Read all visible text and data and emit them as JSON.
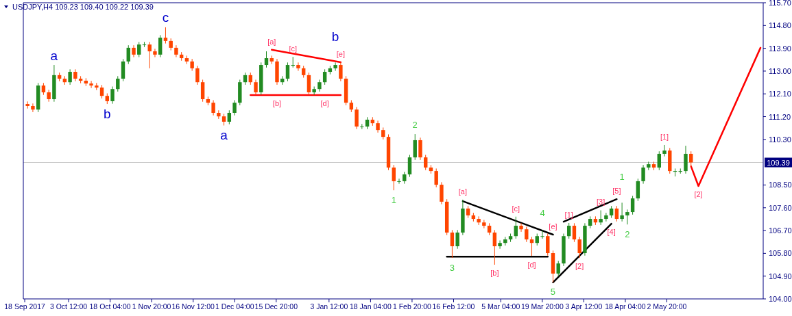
{
  "chart_data": {
    "type": "candlestick",
    "title": "USDJPY,H4  109.23 109.40 109.22 109.39",
    "grid": false,
    "xlim": [
      "2017-09-17T12:00",
      "2018-06-05T21:00"
    ],
    "ylim": [
      104.0,
      115.7
    ],
    "xticks": [
      {
        "value": "2017-09-18T00:00",
        "label": "18 Sep 2017"
      },
      {
        "value": "2017-10-03T12:00",
        "label": "3 Oct 12:00"
      },
      {
        "value": "2017-10-18T04:00",
        "label": "18 Oct 04:00"
      },
      {
        "value": "2017-11-01T20:00",
        "label": "1 Nov 20:00"
      },
      {
        "value": "2017-11-16T12:00",
        "label": "16 Nov 12:00"
      },
      {
        "value": "2017-12-01T04:00",
        "label": "1 Dec 04:00"
      },
      {
        "value": "2017-12-15T20:00",
        "label": "15 Dec 20:00"
      },
      {
        "value": "2018-01-03T12:00",
        "label": "3 Jan 12:00"
      },
      {
        "value": "2018-01-18T04:00",
        "label": "18 Jan 04:00"
      },
      {
        "value": "2018-02-01T20:00",
        "label": "1 Feb 20:00"
      },
      {
        "value": "2018-02-16T12:00",
        "label": "16 Feb 12:00"
      },
      {
        "value": "2018-03-05T04:00",
        "label": "5 Mar 04:00"
      },
      {
        "value": "2018-03-19T20:00",
        "label": "19 Mar 20:00"
      },
      {
        "value": "2018-04-03T12:00",
        "label": "3 Apr 12:00"
      },
      {
        "value": "2018-04-18T04:00",
        "label": "18 Apr 04:00"
      },
      {
        "value": "2018-05-02T20:00",
        "label": "2 May 20:00"
      }
    ],
    "yticks": [
      {
        "value": 104.0,
        "label": "104.00"
      },
      {
        "value": 104.9,
        "label": "104.90"
      },
      {
        "value": 105.8,
        "label": "105.80"
      },
      {
        "value": 106.7,
        "label": "106.70"
      },
      {
        "value": 107.6,
        "label": "107.60"
      },
      {
        "value": 108.5,
        "label": "108.50"
      },
      {
        "value": 110.3,
        "label": "110.30"
      },
      {
        "value": 111.2,
        "label": "111.20"
      },
      {
        "value": 112.1,
        "label": "112.10"
      },
      {
        "value": 113.0,
        "label": "113.00"
      },
      {
        "value": 113.9,
        "label": "113.90"
      },
      {
        "value": 114.8,
        "label": "114.80"
      },
      {
        "value": 115.7,
        "label": "115.70"
      }
    ],
    "ref_lines": [
      {
        "axis": "y",
        "value": 109.39,
        "label": "109.39",
        "color": "#c8c8c8"
      }
    ],
    "x": [
      "2017-09-19T00:00",
      "2017-09-20T21:00",
      "2017-09-22T18:00",
      "2017-09-24T15:00",
      "2017-09-26T12:00",
      "2017-09-28T09:00",
      "2017-09-30T06:00",
      "2017-10-02T03:00",
      "2017-10-04T00:00",
      "2017-10-05T21:00",
      "2017-10-07T18:00",
      "2017-10-09T15:00",
      "2017-10-11T12:00",
      "2017-10-13T09:00",
      "2017-10-15T06:00",
      "2017-10-17T03:00",
      "2017-10-19T00:00",
      "2017-10-20T21:00",
      "2017-10-22T18:00",
      "2017-10-24T15:00",
      "2017-10-26T12:00",
      "2017-10-28T09:00",
      "2017-10-30T06:00",
      "2017-11-01T03:00",
      "2017-11-03T00:00",
      "2017-11-04T21:00",
      "2017-11-06T18:00",
      "2017-11-08T15:00",
      "2017-11-10T12:00",
      "2017-11-12T09:00",
      "2017-11-14T06:00",
      "2017-11-16T03:00",
      "2017-11-18T00:00",
      "2017-11-19T21:00",
      "2017-11-21T18:00",
      "2017-11-23T15:00",
      "2017-11-25T12:00",
      "2017-11-27T09:00",
      "2017-11-29T06:00",
      "2017-12-01T03:00",
      "2017-12-03T00:00",
      "2017-12-04T21:00",
      "2017-12-06T18:00",
      "2017-12-08T15:00",
      "2017-12-10T12:00",
      "2017-12-12T09:00",
      "2017-12-14T06:00",
      "2017-12-16T03:00",
      "2017-12-18T00:00",
      "2017-12-19T21:00",
      "2017-12-21T18:00",
      "2017-12-23T15:00",
      "2017-12-25T12:00",
      "2017-12-27T09:00",
      "2017-12-29T06:00",
      "2017-12-31T03:00",
      "2018-01-02T00:00",
      "2018-01-03T21:00",
      "2018-01-05T18:00",
      "2018-01-07T15:00",
      "2018-01-09T12:00",
      "2018-01-11T09:00",
      "2018-01-13T06:00",
      "2018-01-15T03:00",
      "2018-01-17T00:00",
      "2018-01-18T21:00",
      "2018-01-20T18:00",
      "2018-01-22T15:00",
      "2018-01-24T12:00",
      "2018-01-26T09:00",
      "2018-01-28T06:00",
      "2018-01-30T03:00",
      "2018-02-01T00:00",
      "2018-02-02T21:00",
      "2018-02-04T18:00",
      "2018-02-06T15:00",
      "2018-02-08T12:00",
      "2018-02-10T09:00",
      "2018-02-12T06:00",
      "2018-02-14T03:00",
      "2018-02-16T00:00",
      "2018-02-17T21:00",
      "2018-02-19T18:00",
      "2018-02-21T15:00",
      "2018-02-23T12:00",
      "2018-02-25T09:00",
      "2018-02-27T06:00",
      "2018-03-01T03:00",
      "2018-03-03T00:00",
      "2018-03-04T21:00",
      "2018-03-06T18:00",
      "2018-03-08T15:00",
      "2018-03-10T12:00",
      "2018-03-12T09:00",
      "2018-03-14T06:00",
      "2018-03-16T03:00",
      "2018-03-18T00:00",
      "2018-03-19T21:00",
      "2018-03-21T18:00",
      "2018-03-23T15:00",
      "2018-03-25T12:00",
      "2018-03-27T09:00",
      "2018-03-29T06:00",
      "2018-03-31T03:00",
      "2018-04-02T00:00",
      "2018-04-03T21:00",
      "2018-04-05T18:00",
      "2018-04-07T15:00",
      "2018-04-09T12:00",
      "2018-04-11T09:00",
      "2018-04-13T06:00",
      "2018-04-15T03:00",
      "2018-04-17T00:00",
      "2018-04-18T21:00",
      "2018-04-20T18:00",
      "2018-04-22T15:00",
      "2018-04-24T12:00",
      "2018-04-26T09:00",
      "2018-04-28T06:00",
      "2018-04-30T03:00",
      "2018-05-02T00:00",
      "2018-05-03T21:00",
      "2018-05-05T18:00",
      "2018-05-07T15:00",
      "2018-05-09T12:00",
      "2018-05-11T09:00"
    ],
    "ohlc": [
      [
        111.7,
        111.8,
        111.52,
        111.62
      ],
      [
        111.62,
        111.72,
        111.38,
        111.48
      ],
      [
        111.48,
        112.53,
        111.38,
        112.43
      ],
      [
        112.43,
        112.53,
        112.06,
        112.16
      ],
      [
        112.16,
        112.26,
        111.79,
        111.89
      ],
      [
        111.89,
        113.24,
        111.79,
        112.84
      ],
      [
        112.84,
        112.94,
        112.6,
        112.7
      ],
      [
        112.7,
        112.8,
        112.46,
        112.56
      ],
      [
        112.56,
        113.07,
        112.46,
        112.97
      ],
      [
        112.97,
        113.07,
        112.6,
        112.7
      ],
      [
        112.7,
        112.8,
        112.52,
        112.62
      ],
      [
        112.62,
        112.72,
        112.41,
        112.51
      ],
      [
        112.51,
        112.61,
        112.33,
        112.43
      ],
      [
        112.43,
        112.53,
        112.25,
        112.35
      ],
      [
        112.35,
        112.45,
        111.92,
        112.02
      ],
      [
        112.02,
        112.12,
        111.7,
        111.81
      ],
      [
        111.81,
        112.39,
        111.71,
        112.29
      ],
      [
        112.29,
        112.8,
        112.19,
        112.7
      ],
      [
        112.7,
        113.48,
        112.6,
        113.38
      ],
      [
        113.38,
        114.02,
        113.28,
        113.92
      ],
      [
        113.92,
        114.02,
        113.55,
        113.65
      ],
      [
        113.65,
        114.15,
        113.55,
        114.05
      ],
      [
        114.05,
        114.15,
        113.95,
        114.05
      ],
      [
        114.05,
        114.15,
        113.11,
        113.78
      ],
      [
        113.78,
        113.88,
        113.55,
        113.65
      ],
      [
        113.65,
        114.42,
        113.55,
        114.32
      ],
      [
        114.32,
        114.73,
        114.09,
        114.19
      ],
      [
        114.19,
        114.29,
        113.82,
        113.92
      ],
      [
        113.92,
        114.02,
        113.55,
        113.65
      ],
      [
        113.65,
        113.75,
        113.41,
        113.51
      ],
      [
        113.51,
        113.61,
        113.28,
        113.38
      ],
      [
        113.38,
        113.48,
        113.01,
        113.11
      ],
      [
        113.11,
        113.21,
        112.46,
        112.56
      ],
      [
        112.56,
        112.66,
        111.79,
        111.89
      ],
      [
        111.89,
        111.99,
        111.65,
        111.75
      ],
      [
        111.75,
        111.85,
        111.25,
        111.35
      ],
      [
        111.35,
        111.45,
        111.11,
        111.21
      ],
      [
        111.21,
        111.31,
        110.85,
        111.0
      ],
      [
        111.0,
        111.45,
        110.9,
        111.35
      ],
      [
        111.35,
        111.85,
        111.25,
        111.75
      ],
      [
        111.75,
        112.66,
        111.65,
        112.56
      ],
      [
        112.56,
        112.94,
        112.46,
        112.84
      ],
      [
        112.84,
        112.94,
        112.46,
        112.56
      ],
      [
        112.56,
        112.66,
        112.06,
        112.16
      ],
      [
        112.16,
        113.34,
        112.06,
        113.24
      ],
      [
        113.24,
        113.78,
        113.14,
        113.51
      ],
      [
        113.51,
        113.61,
        113.28,
        113.38
      ],
      [
        113.38,
        113.48,
        112.46,
        112.56
      ],
      [
        112.56,
        112.8,
        112.46,
        112.7
      ],
      [
        112.7,
        113.34,
        112.6,
        113.24
      ],
      [
        113.24,
        113.56,
        113.14,
        113.24
      ],
      [
        113.24,
        113.34,
        113.01,
        113.11
      ],
      [
        113.11,
        113.21,
        112.74,
        112.84
      ],
      [
        112.84,
        112.94,
        112.06,
        112.16
      ],
      [
        112.16,
        112.39,
        112.06,
        112.29
      ],
      [
        112.29,
        112.66,
        112.19,
        112.56
      ],
      [
        112.56,
        113.07,
        112.46,
        112.97
      ],
      [
        112.97,
        113.21,
        112.87,
        113.11
      ],
      [
        113.11,
        113.34,
        113.01,
        113.24
      ],
      [
        113.24,
        113.34,
        112.6,
        112.7
      ],
      [
        112.7,
        112.8,
        111.65,
        111.75
      ],
      [
        111.75,
        111.85,
        111.38,
        111.48
      ],
      [
        111.48,
        111.58,
        110.71,
        110.81
      ],
      [
        110.81,
        110.91,
        110.71,
        110.81
      ],
      [
        110.81,
        111.18,
        110.71,
        111.08
      ],
      [
        111.08,
        111.18,
        110.84,
        110.94
      ],
      [
        110.94,
        111.04,
        110.57,
        110.67
      ],
      [
        110.67,
        110.77,
        110.3,
        110.4
      ],
      [
        110.4,
        110.5,
        109.09,
        109.19
      ],
      [
        109.19,
        109.29,
        108.29,
        108.65
      ],
      [
        108.65,
        108.75,
        108.55,
        108.65
      ],
      [
        108.65,
        109.02,
        108.55,
        108.92
      ],
      [
        108.92,
        109.69,
        108.82,
        109.59
      ],
      [
        109.59,
        110.51,
        109.49,
        110.27
      ],
      [
        110.27,
        110.37,
        109.49,
        109.59
      ],
      [
        109.59,
        109.69,
        109.09,
        109.19
      ],
      [
        109.19,
        109.29,
        108.95,
        109.05
      ],
      [
        109.05,
        109.15,
        108.41,
        108.51
      ],
      [
        108.51,
        108.61,
        107.74,
        107.84
      ],
      [
        107.84,
        107.94,
        106.52,
        106.62
      ],
      [
        106.62,
        106.72,
        105.62,
        106.08
      ],
      [
        106.08,
        106.72,
        105.98,
        106.62
      ],
      [
        106.62,
        107.92,
        106.52,
        107.57
      ],
      [
        107.57,
        107.67,
        107.2,
        107.3
      ],
      [
        107.3,
        107.4,
        107.06,
        107.16
      ],
      [
        107.16,
        107.26,
        106.92,
        107.02
      ],
      [
        107.02,
        107.12,
        106.79,
        106.89
      ],
      [
        106.89,
        106.99,
        106.52,
        106.62
      ],
      [
        106.62,
        106.72,
        105.35,
        106.08
      ],
      [
        106.08,
        106.31,
        105.98,
        106.21
      ],
      [
        106.21,
        106.45,
        106.11,
        106.35
      ],
      [
        106.35,
        106.58,
        106.25,
        106.48
      ],
      [
        106.48,
        107.25,
        106.38,
        106.89
      ],
      [
        106.89,
        106.99,
        106.65,
        106.75
      ],
      [
        106.75,
        106.85,
        106.25,
        106.35
      ],
      [
        106.35,
        106.45,
        105.7,
        106.21
      ],
      [
        106.21,
        106.58,
        106.11,
        106.48
      ],
      [
        106.48,
        106.7,
        106.38,
        106.48
      ],
      [
        106.48,
        106.58,
        105.71,
        105.81
      ],
      [
        105.81,
        105.91,
        104.65,
        105.0
      ],
      [
        105.0,
        105.5,
        104.9,
        105.4
      ],
      [
        105.4,
        106.58,
        105.3,
        106.48
      ],
      [
        106.48,
        107.0,
        106.38,
        106.89
      ],
      [
        106.89,
        106.99,
        106.25,
        106.35
      ],
      [
        106.35,
        106.45,
        105.62,
        105.81
      ],
      [
        105.81,
        106.99,
        105.71,
        106.89
      ],
      [
        106.89,
        107.26,
        106.79,
        107.16
      ],
      [
        107.16,
        107.26,
        106.92,
        107.02
      ],
      [
        107.02,
        107.5,
        106.92,
        107.16
      ],
      [
        107.16,
        107.4,
        107.06,
        107.3
      ],
      [
        107.3,
        107.67,
        107.2,
        107.57
      ],
      [
        107.57,
        107.67,
        107.06,
        107.16
      ],
      [
        107.16,
        107.8,
        107.06,
        107.3
      ],
      [
        107.3,
        107.53,
        106.94,
        107.43
      ],
      [
        107.43,
        108.07,
        107.33,
        107.97
      ],
      [
        107.97,
        108.75,
        107.87,
        108.65
      ],
      [
        108.65,
        109.29,
        108.55,
        109.19
      ],
      [
        109.19,
        109.42,
        109.09,
        109.32
      ],
      [
        109.32,
        109.42,
        109.09,
        109.19
      ],
      [
        109.19,
        109.83,
        109.09,
        109.73
      ],
      [
        109.73,
        110.08,
        109.63,
        109.86
      ],
      [
        109.86,
        109.96,
        108.95,
        109.05
      ],
      [
        109.05,
        109.15,
        108.84,
        109.05
      ],
      [
        109.05,
        109.15,
        108.95,
        109.05
      ],
      [
        109.05,
        110.05,
        108.95,
        109.73
      ],
      [
        109.73,
        109.83,
        109.22,
        109.39
      ]
    ],
    "series": [
      {
        "type": "line",
        "color": "#ff0000",
        "x": [
          "2017-12-14T06:00",
          "2018-01-07T15:00"
        ],
        "values": [
          113.84,
          113.35
        ]
      },
      {
        "type": "line",
        "color": "#ff0000",
        "x": [
          "2017-12-06T18:00",
          "2017-12-16T03:00",
          "2018-01-02T00:00",
          "2018-01-07T15:00"
        ],
        "values": [
          112.05,
          112.05,
          112.05,
          112.05
        ]
      },
      {
        "type": "line",
        "color": "#000000",
        "x": [
          "2018-02-19T18:00",
          "2018-03-23T15:00"
        ],
        "values": [
          107.86,
          106.54
        ]
      },
      {
        "type": "line",
        "color": "#000000",
        "x": [
          "2018-02-14T03:00",
          "2018-03-16T03:00",
          "2018-03-21T18:00"
        ],
        "values": [
          105.67,
          105.67,
          105.67
        ]
      },
      {
        "type": "line",
        "color": "#000000",
        "x": [
          "2018-03-27T09:00",
          "2018-04-15T03:00"
        ],
        "values": [
          107.05,
          107.94
        ]
      },
      {
        "type": "line",
        "color": "#000000",
        "x": [
          "2018-03-23T15:00",
          "2018-04-13T06:00"
        ],
        "values": [
          104.65,
          106.97
        ]
      },
      {
        "type": "line",
        "color": "#ff0000",
        "x": [
          "2018-05-11T09:00",
          "2018-05-14T00:00",
          "2018-06-04T22:00"
        ],
        "values": [
          109.24,
          108.46,
          113.92
        ]
      }
    ],
    "annotations": [
      {
        "text": "a",
        "x": "2017-09-28T09:00",
        "y": 113.24
      },
      {
        "text": "b",
        "x": "2017-10-17T03:00",
        "y": 111.7
      },
      {
        "text": "c",
        "x": "2017-11-06T18:00",
        "y": 114.73
      },
      {
        "text": "a",
        "x": "2017-11-27T09:00",
        "y": 110.85
      },
      {
        "text": "[a]",
        "x": "2017-12-14T06:00",
        "y": 113.84
      },
      {
        "text": "[c]",
        "x": "2017-12-21T18:00",
        "y": 113.56
      },
      {
        "text": "[e]",
        "x": "2018-01-07T15:00",
        "y": 113.35
      },
      {
        "text": "b",
        "x": "2018-01-05T18:00",
        "y": 113.34
      },
      {
        "text": "[b]",
        "x": "2017-12-16T03:00",
        "y": 112.05
      },
      {
        "text": "[d]",
        "x": "2018-01-02T00:00",
        "y": 112.05
      },
      {
        "text": "1",
        "x": "2018-01-26T09:00",
        "y": 108.29
      },
      {
        "text": "2",
        "x": "2018-02-02T21:00",
        "y": 110.51
      },
      {
        "text": "3",
        "x": "2018-02-16T00:00",
        "y": 105.62
      },
      {
        "text": "[a]",
        "x": "2018-02-19T18:00",
        "y": 107.92
      },
      {
        "text": "[b]",
        "x": "2018-03-03T00:00",
        "y": 105.35
      },
      {
        "text": "[c]",
        "x": "2018-03-10T12:00",
        "y": 107.25
      },
      {
        "text": "[d]",
        "x": "2018-03-16T03:00",
        "y": 105.67
      },
      {
        "text": "[e]",
        "x": "2018-03-23T15:00",
        "y": 106.54
      },
      {
        "text": "4",
        "x": "2018-03-19T21:00",
        "y": 106.7
      },
      {
        "text": "5",
        "x": "2018-03-23T15:00",
        "y": 104.65
      },
      {
        "text": "[1]",
        "x": "2018-03-29T06:00",
        "y": 107.0
      },
      {
        "text": "[2]",
        "x": "2018-04-02T00:00",
        "y": 105.62
      },
      {
        "text": "[3]",
        "x": "2018-04-09T12:00",
        "y": 107.5
      },
      {
        "text": "[4]",
        "x": "2018-04-13T06:00",
        "y": 106.97
      },
      {
        "text": "[5]",
        "x": "2018-04-15T03:00",
        "y": 107.94
      },
      {
        "text": "1",
        "x": "2018-04-17T00:00",
        "y": 107.8
      },
      {
        "text": "2",
        "x": "2018-04-18T21:00",
        "y": 106.94
      },
      {
        "text": "[1]",
        "x": "2018-05-02T00:00",
        "y": 110.08
      },
      {
        "text": "[2]",
        "x": "2018-05-14T00:00",
        "y": 108.46
      }
    ]
  }
}
